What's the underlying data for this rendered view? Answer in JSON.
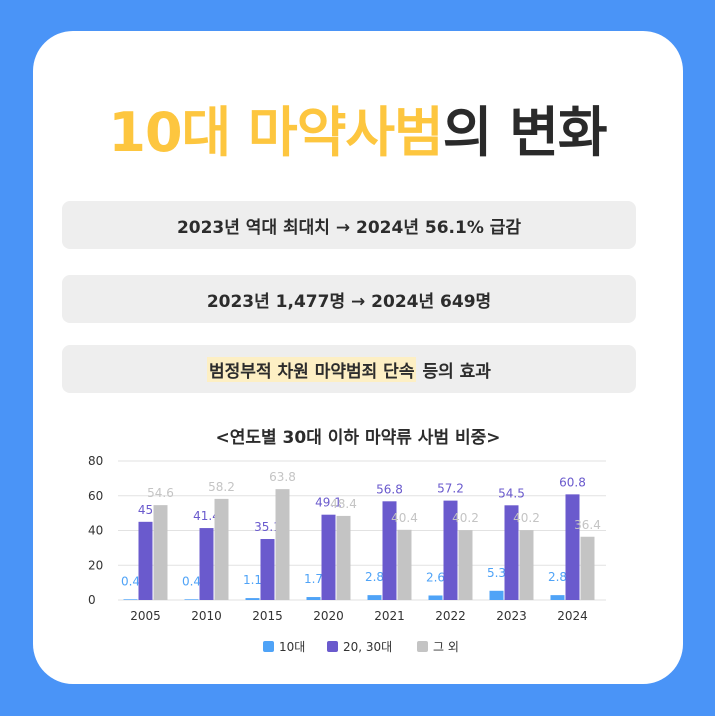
{
  "title": {
    "highlight": "10대 마약사범",
    "rest": "의 변화"
  },
  "pills": [
    "2023년 역대 최대치 → 2024년 56.1% 급감",
    "2023년 1,477명 → 2024년 649명"
  ],
  "pill3": {
    "highlight": "범정부적 차원 마약범죄 단속",
    "rest": "등의 효과"
  },
  "chart_data": {
    "type": "bar",
    "title": "<연도별 30대 이하 마약류 사범 비중>",
    "categories": [
      "2005",
      "2010",
      "2015",
      "2020",
      "2021",
      "2022",
      "2023",
      "2024"
    ],
    "series": [
      {
        "name": "10대",
        "color": "#4fa3f7",
        "values": [
          0.4,
          0.4,
          1.1,
          1.7,
          2.8,
          2.6,
          5.3,
          2.8
        ]
      },
      {
        "name": "20, 30대",
        "color": "#6a5acd",
        "values": [
          45,
          41.4,
          35.1,
          49.1,
          56.8,
          57.2,
          54.5,
          60.8
        ]
      },
      {
        "name": "그 외",
        "color": "#c4c4c4",
        "values": [
          54.6,
          58.2,
          63.8,
          48.4,
          40.4,
          40.2,
          40.2,
          36.4
        ]
      }
    ],
    "ylim": [
      0,
      80
    ],
    "yticks": [
      0,
      20,
      40,
      60,
      80
    ],
    "xlabel": "",
    "ylabel": "",
    "grid": true,
    "legend": "bottom-center"
  }
}
